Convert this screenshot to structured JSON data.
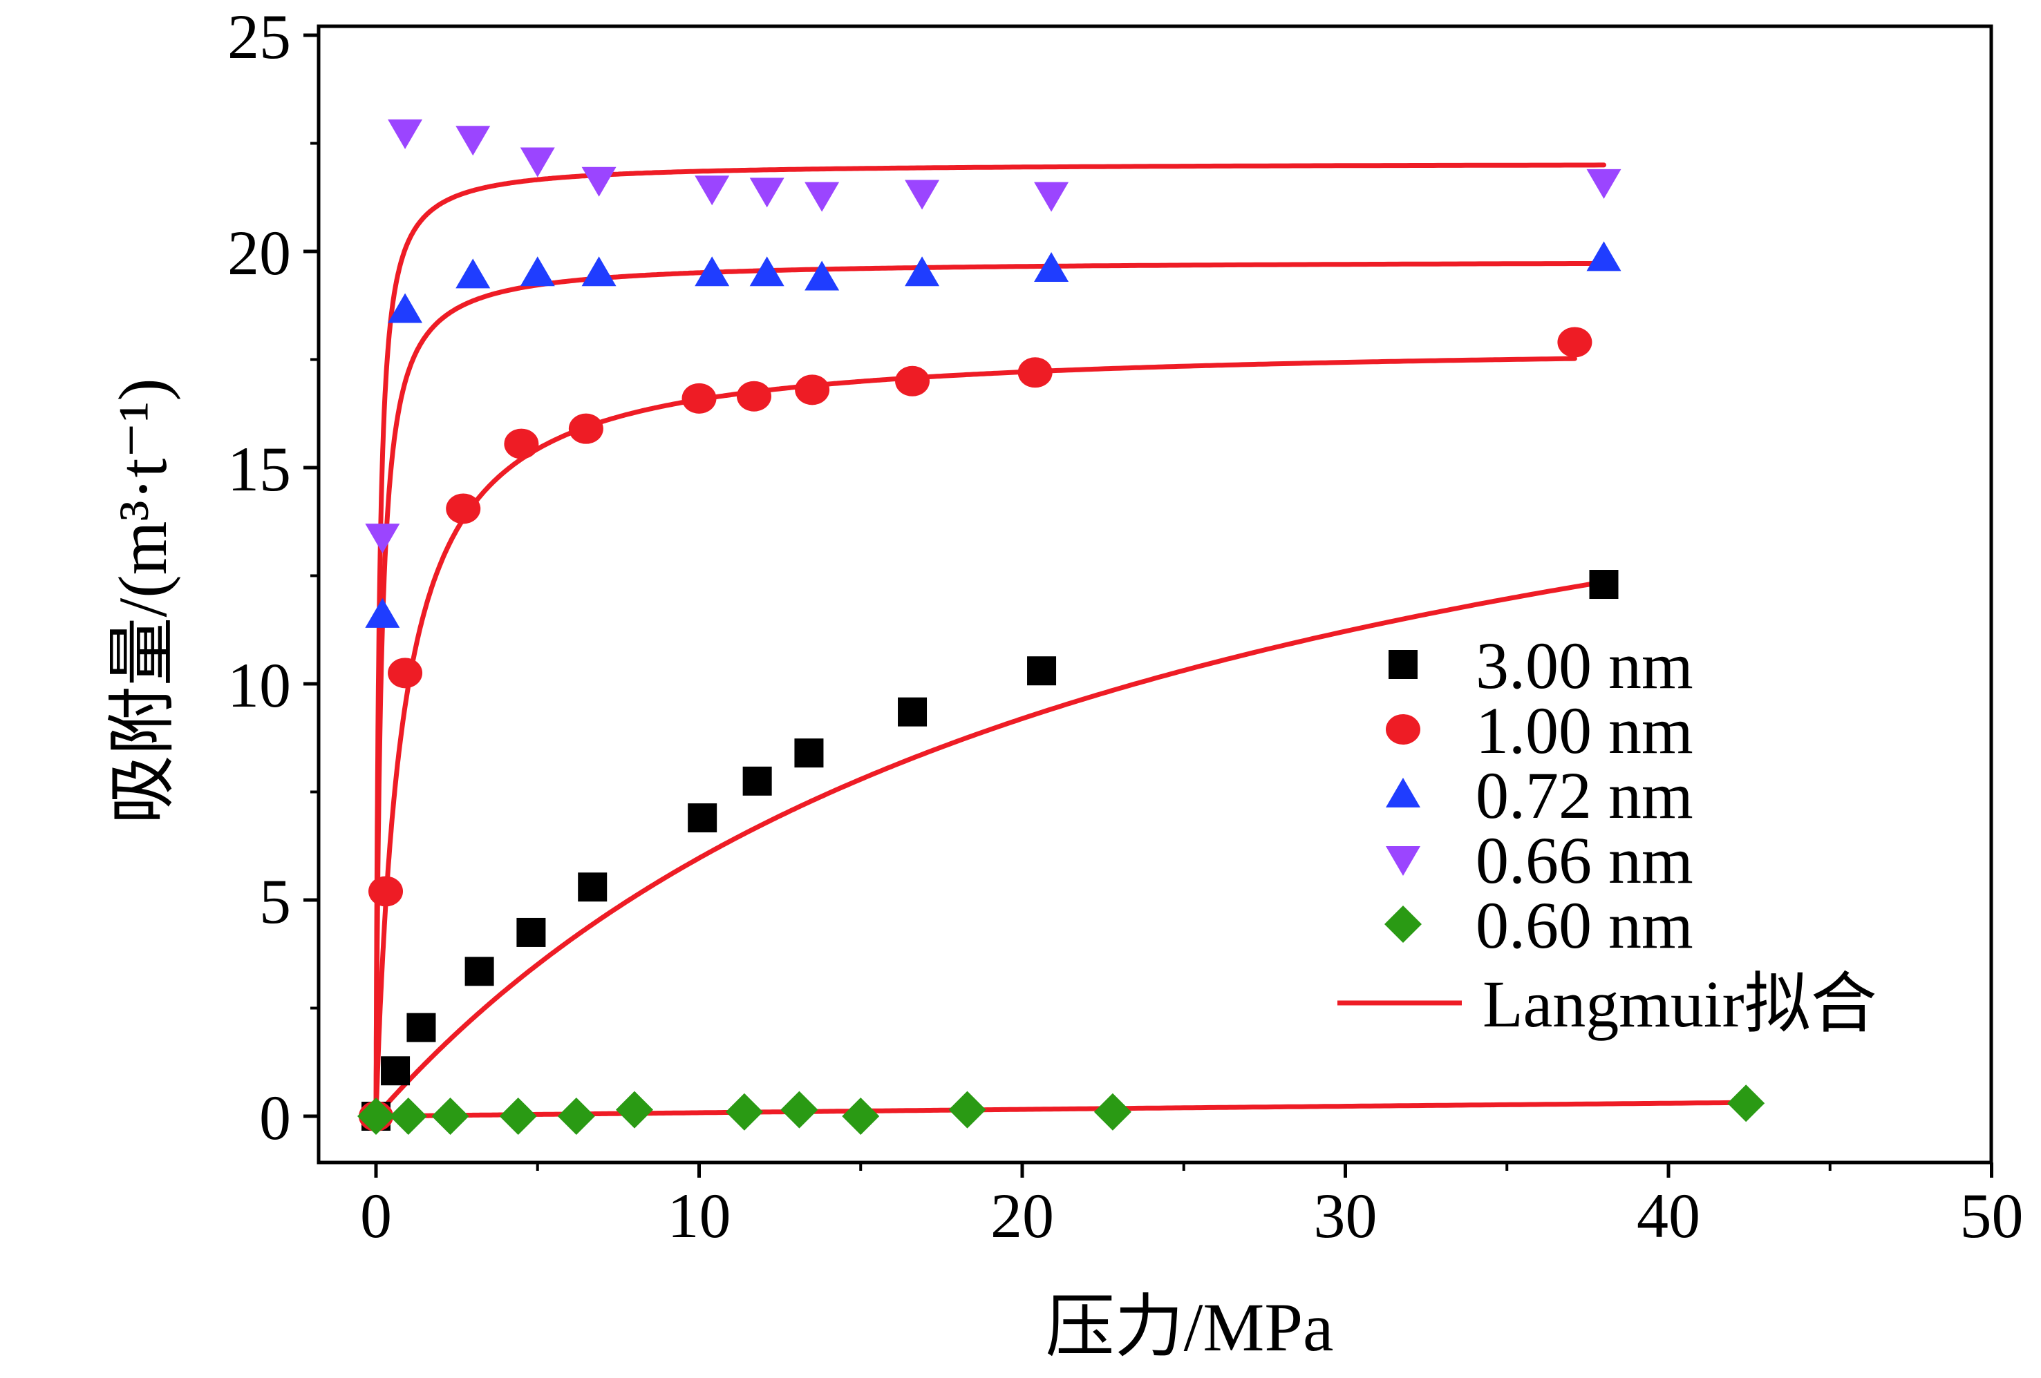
{
  "chart_data": {
    "type": "scatter",
    "xlabel": "压力/MPa",
    "ylabel": "吸附量/(m³·t⁻¹)",
    "xlim": [
      -2,
      50
    ],
    "ylim": [
      -1,
      25
    ],
    "xticks": [
      0,
      10,
      20,
      30,
      40,
      50
    ],
    "yticks": [
      0,
      5,
      10,
      15,
      20,
      25
    ],
    "xtick_labels": [
      "0",
      "10",
      "20",
      "30",
      "40",
      "50"
    ],
    "ytick_labels": [
      "0",
      "5",
      "10",
      "15",
      "20",
      "25"
    ],
    "grid": false,
    "legend_position": "right",
    "series": [
      {
        "name": "3.00 nm",
        "marker": "square",
        "color": "#000000",
        "x": [
          0,
          0.6,
          1.4,
          3.2,
          4.8,
          6.7,
          10.1,
          11.8,
          13.4,
          16.6,
          20.6,
          38.0
        ],
        "y": [
          0,
          1.05,
          2.05,
          3.35,
          4.25,
          5.3,
          6.9,
          7.75,
          8.4,
          9.35,
          10.3,
          12.3
        ]
      },
      {
        "name": "1.00 nm",
        "marker": "circle",
        "color": "#ee1c25",
        "x": [
          0,
          0.3,
          0.9,
          2.7,
          4.5,
          6.5,
          10.0,
          11.7,
          13.5,
          16.6,
          20.4,
          37.1
        ],
        "y": [
          0,
          5.2,
          10.25,
          14.05,
          15.55,
          15.9,
          16.6,
          16.65,
          16.8,
          17.0,
          17.2,
          17.9
        ]
      },
      {
        "name": "0.72 nm",
        "marker": "triangle-up",
        "color": "#1f3dff",
        "x": [
          0.2,
          0.9,
          3.0,
          5.0,
          6.9,
          10.4,
          12.1,
          13.8,
          16.9,
          20.9,
          38.0
        ],
        "y": [
          11.6,
          18.65,
          19.45,
          19.5,
          19.5,
          19.5,
          19.5,
          19.4,
          19.5,
          19.6,
          19.85
        ]
      },
      {
        "name": "0.66 nm",
        "marker": "triangle-down",
        "color": "#9b45ff",
        "x": [
          0.2,
          0.9,
          3.0,
          5.0,
          6.9,
          10.4,
          12.1,
          13.8,
          16.9,
          20.9,
          38.0
        ],
        "y": [
          13.4,
          22.75,
          22.6,
          22.1,
          21.65,
          21.45,
          21.4,
          21.3,
          21.35,
          21.3,
          21.6
        ]
      },
      {
        "name": "0.60 nm",
        "marker": "diamond",
        "color": "#2a9a14",
        "x": [
          0,
          1.0,
          2.3,
          4.4,
          6.2,
          8.0,
          11.4,
          13.1,
          15.0,
          18.3,
          22.8,
          42.4
        ],
        "y": [
          0,
          0,
          0,
          0,
          0,
          0.15,
          0.1,
          0.15,
          0,
          0.15,
          0.1,
          0.3
        ]
      }
    ],
    "fit": {
      "name": "Langmuir拟合",
      "color": "#ee1c25",
      "curves": [
        {
          "for": "3.00 nm",
          "VL": 20.0,
          "PL": 23.5,
          "xmax": 38.0
        },
        {
          "for": "1.00 nm",
          "VL": 17.9,
          "PL": 0.8,
          "xmax": 37.1
        },
        {
          "for": "0.72 nm",
          "VL": 19.8,
          "PL": 0.15,
          "xmax": 38.0
        },
        {
          "for": "0.66 nm",
          "VL": 22.05,
          "PL": 0.09,
          "xmax": 38.0
        },
        {
          "for": "0.60 nm",
          "VL": 3.0,
          "PL": 360,
          "xmax": 42.4
        }
      ]
    }
  }
}
